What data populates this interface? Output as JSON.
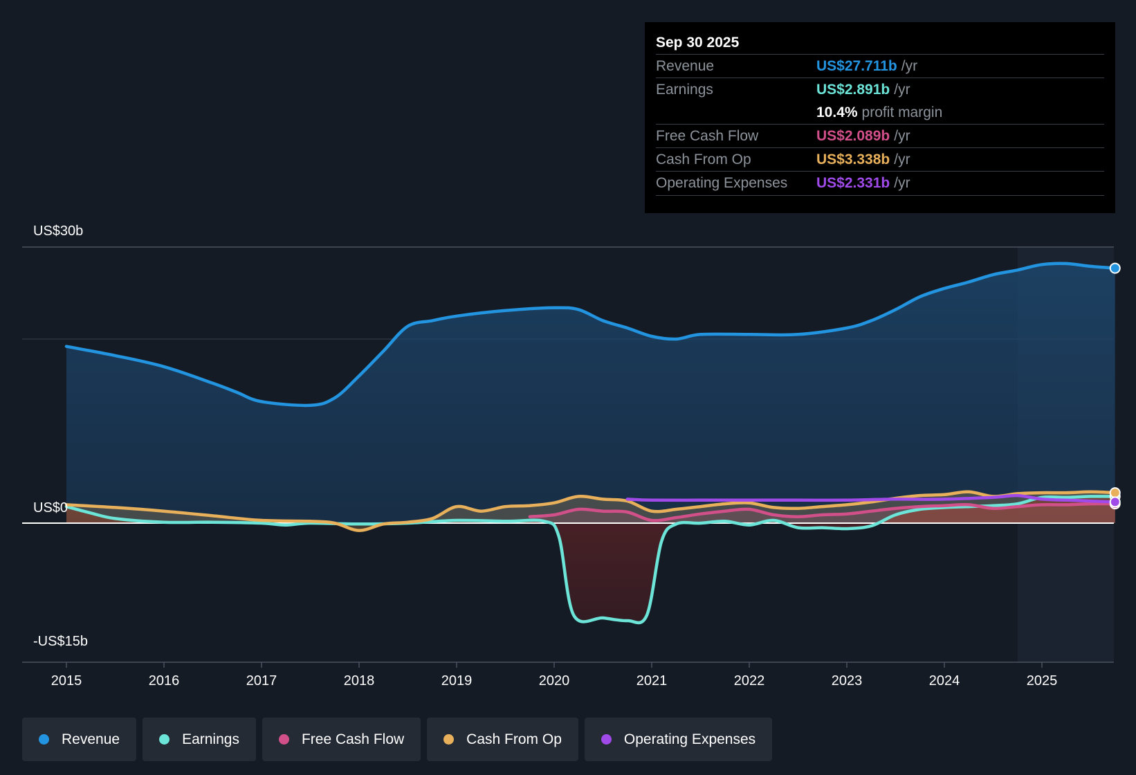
{
  "tooltip": {
    "date": "Sep 30 2025",
    "rows": [
      {
        "name": "Revenue",
        "value": "US$27.711b",
        "unit": "/yr",
        "color": "#2394df"
      },
      {
        "name": "Earnings",
        "value": "US$2.891b",
        "unit": "/yr",
        "color": "#6ce5d8"
      },
      {
        "name": "",
        "value": "10.4%",
        "unit": "profit margin",
        "color": "#ffffff"
      },
      {
        "name": "Free Cash Flow",
        "value": "US$2.089b",
        "unit": "/yr",
        "color": "#d1508a"
      },
      {
        "name": "Cash From Op",
        "value": "US$3.338b",
        "unit": "/yr",
        "color": "#e8b05a"
      },
      {
        "name": "Operating Expenses",
        "value": "US$2.331b",
        "unit": "/yr",
        "color": "#a04ae9"
      }
    ]
  },
  "legend": [
    {
      "label": "Revenue",
      "color": "#2394df"
    },
    {
      "label": "Earnings",
      "color": "#6ce5d8"
    },
    {
      "label": "Free Cash Flow",
      "color": "#d1508a"
    },
    {
      "label": "Cash From Op",
      "color": "#e8b05a"
    },
    {
      "label": "Operating Expenses",
      "color": "#a04ae9"
    }
  ],
  "chart_data": {
    "type": "area",
    "title": "",
    "y_labels": [
      "US$30b",
      "US$0",
      "-US$15b"
    ],
    "ylim": [
      -15,
      30
    ],
    "xlim": [
      2014.55,
      2025.75
    ],
    "x_tick_labels": [
      "2015",
      "2016",
      "2017",
      "2018",
      "2019",
      "2020",
      "2021",
      "2022",
      "2023",
      "2024",
      "2025"
    ],
    "x_ticks": [
      2015,
      2016,
      2017,
      2018,
      2019,
      2020,
      2021,
      2022,
      2023,
      2024,
      2025
    ],
    "highlight_from": 2024.75,
    "series": [
      {
        "name": "Revenue",
        "color": "#2394df",
        "fill": true,
        "points": [
          [
            2015,
            19.2
          ],
          [
            2015.5,
            18.2
          ],
          [
            2016,
            17
          ],
          [
            2016.5,
            15.2
          ],
          [
            2016.75,
            14.2
          ],
          [
            2017,
            13.2
          ],
          [
            2017.5,
            12.8
          ],
          [
            2017.75,
            13.6
          ],
          [
            2018,
            16
          ],
          [
            2018.25,
            18.7
          ],
          [
            2018.5,
            21.4
          ],
          [
            2018.75,
            22
          ],
          [
            2019,
            22.5
          ],
          [
            2019.5,
            23.1
          ],
          [
            2020,
            23.4
          ],
          [
            2020.25,
            23.2
          ],
          [
            2020.5,
            22
          ],
          [
            2020.75,
            21.2
          ],
          [
            2021,
            20.3
          ],
          [
            2021.25,
            20
          ],
          [
            2021.5,
            20.5
          ],
          [
            2022,
            20.5
          ],
          [
            2022.5,
            20.5
          ],
          [
            2023,
            21.2
          ],
          [
            2023.25,
            22
          ],
          [
            2023.5,
            23.2
          ],
          [
            2023.75,
            24.6
          ],
          [
            2024,
            25.5
          ],
          [
            2024.25,
            26.2
          ],
          [
            2024.5,
            27
          ],
          [
            2024.75,
            27.5
          ],
          [
            2025,
            28.1
          ],
          [
            2025.25,
            28.2
          ],
          [
            2025.5,
            27.9
          ],
          [
            2025.75,
            27.7
          ]
        ]
      },
      {
        "name": "Earnings",
        "color": "#6ce5d8",
        "fill": true,
        "points": [
          [
            2015,
            1.8
          ],
          [
            2015.25,
            1.1
          ],
          [
            2015.5,
            0.5
          ],
          [
            2016,
            0.1
          ],
          [
            2016.5,
            0.1
          ],
          [
            2017,
            0
          ],
          [
            2017.25,
            -0.2
          ],
          [
            2017.5,
            0
          ],
          [
            2018,
            -0.1
          ],
          [
            2018.5,
            0
          ],
          [
            2019,
            0.3
          ],
          [
            2019.5,
            0.2
          ],
          [
            2019.9,
            0.2
          ],
          [
            2020.05,
            -1.5
          ],
          [
            2020.2,
            -10
          ],
          [
            2020.5,
            -10.3
          ],
          [
            2020.75,
            -10.6
          ],
          [
            2020.95,
            -10
          ],
          [
            2021.1,
            -2
          ],
          [
            2021.25,
            -0.1
          ],
          [
            2021.5,
            0
          ],
          [
            2021.75,
            0.2
          ],
          [
            2022,
            -0.2
          ],
          [
            2022.25,
            0.3
          ],
          [
            2022.5,
            -0.5
          ],
          [
            2022.75,
            -0.5
          ],
          [
            2023,
            -0.6
          ],
          [
            2023.25,
            -0.3
          ],
          [
            2023.5,
            0.9
          ],
          [
            2023.75,
            1.5
          ],
          [
            2024,
            1.7
          ],
          [
            2024.25,
            1.8
          ],
          [
            2024.5,
            1.9
          ],
          [
            2024.75,
            2.1
          ],
          [
            2025,
            2.8
          ],
          [
            2025.25,
            2.8
          ],
          [
            2025.5,
            2.9
          ],
          [
            2025.75,
            2.9
          ]
        ]
      },
      {
        "name": "Free Cash Flow",
        "color": "#d1508a",
        "fill": true,
        "points": [
          [
            2019.75,
            0.7
          ],
          [
            2020,
            0.9
          ],
          [
            2020.25,
            1.5
          ],
          [
            2020.5,
            1.3
          ],
          [
            2020.75,
            1.2
          ],
          [
            2021,
            0.3
          ],
          [
            2021.25,
            0.6
          ],
          [
            2021.5,
            1
          ],
          [
            2021.75,
            1.3
          ],
          [
            2022,
            1.5
          ],
          [
            2022.25,
            0.9
          ],
          [
            2022.5,
            0.7
          ],
          [
            2022.75,
            0.9
          ],
          [
            2023,
            1
          ],
          [
            2023.25,
            1.3
          ],
          [
            2023.5,
            1.6
          ],
          [
            2023.75,
            1.8
          ],
          [
            2024,
            1.9
          ],
          [
            2024.25,
            2
          ],
          [
            2024.5,
            1.6
          ],
          [
            2024.75,
            1.8
          ],
          [
            2025,
            2
          ],
          [
            2025.25,
            2
          ],
          [
            2025.5,
            2.1
          ],
          [
            2025.75,
            2.1
          ]
        ]
      },
      {
        "name": "Cash From Op",
        "color": "#e8b05a",
        "fill": true,
        "points": [
          [
            2015,
            2
          ],
          [
            2015.5,
            1.7
          ],
          [
            2016,
            1.3
          ],
          [
            2016.5,
            0.8
          ],
          [
            2017,
            0.3
          ],
          [
            2017.5,
            0.2
          ],
          [
            2017.75,
            0
          ],
          [
            2018,
            -0.8
          ],
          [
            2018.25,
            -0.1
          ],
          [
            2018.5,
            0.1
          ],
          [
            2018.75,
            0.5
          ],
          [
            2019,
            1.8
          ],
          [
            2019.25,
            1.3
          ],
          [
            2019.5,
            1.8
          ],
          [
            2019.75,
            1.9
          ],
          [
            2020,
            2.2
          ],
          [
            2020.25,
            2.9
          ],
          [
            2020.5,
            2.6
          ],
          [
            2020.75,
            2.4
          ],
          [
            2021,
            1.3
          ],
          [
            2021.25,
            1.5
          ],
          [
            2021.5,
            1.8
          ],
          [
            2021.75,
            2.1
          ],
          [
            2022,
            2.2
          ],
          [
            2022.25,
            1.7
          ],
          [
            2022.5,
            1.6
          ],
          [
            2022.75,
            1.8
          ],
          [
            2023,
            2
          ],
          [
            2023.25,
            2.3
          ],
          [
            2023.5,
            2.7
          ],
          [
            2023.75,
            3
          ],
          [
            2024,
            3.1
          ],
          [
            2024.25,
            3.4
          ],
          [
            2024.5,
            2.9
          ],
          [
            2024.75,
            3.2
          ],
          [
            2025,
            3.3
          ],
          [
            2025.25,
            3.3
          ],
          [
            2025.5,
            3.4
          ],
          [
            2025.75,
            3.3
          ]
        ]
      },
      {
        "name": "Operating Expenses",
        "color": "#a04ae9",
        "fill": false,
        "points": [
          [
            2020.75,
            2.6
          ],
          [
            2021,
            2.5
          ],
          [
            2021.5,
            2.5
          ],
          [
            2022,
            2.5
          ],
          [
            2022.5,
            2.5
          ],
          [
            2023,
            2.5
          ],
          [
            2023.5,
            2.6
          ],
          [
            2024,
            2.6
          ],
          [
            2024.5,
            2.8
          ],
          [
            2024.75,
            3
          ],
          [
            2025,
            2.6
          ],
          [
            2025.25,
            2.5
          ],
          [
            2025.5,
            2.4
          ],
          [
            2025.75,
            2.3
          ]
        ]
      }
    ]
  }
}
